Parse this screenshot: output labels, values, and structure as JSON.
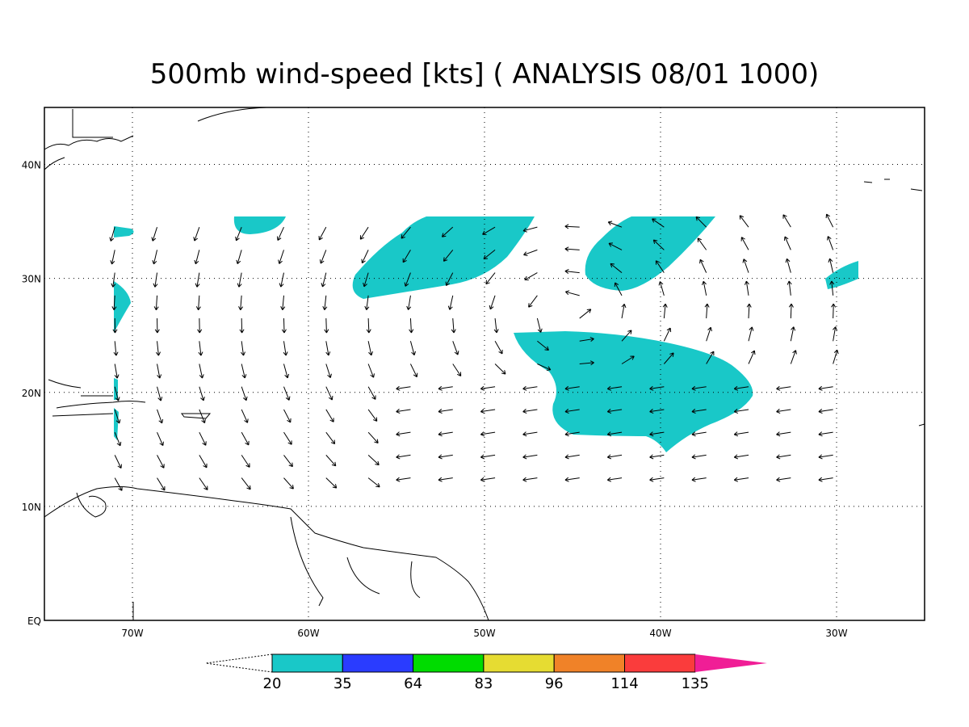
{
  "map": {
    "title": "500mb wind-speed [kts] ( ANALYSIS 08/01 1000)",
    "xlim": [
      -75,
      -25
    ],
    "ylim": [
      0,
      45
    ],
    "xticks": [
      {
        "value": -70,
        "label": "70W"
      },
      {
        "value": -60,
        "label": "60W"
      },
      {
        "value": -50,
        "label": "50W"
      },
      {
        "value": -40,
        "label": "40W"
      },
      {
        "value": -30,
        "label": "30W"
      }
    ],
    "yticks": [
      {
        "value": 40,
        "label": "40N"
      },
      {
        "value": 30,
        "label": "30N"
      },
      {
        "value": 20,
        "label": "20N"
      },
      {
        "value": 10,
        "label": "10N"
      },
      {
        "value": 0,
        "label": "EQ"
      }
    ],
    "grid": true,
    "colorbar": {
      "levels": [
        20,
        35,
        64,
        83,
        96,
        114,
        135
      ],
      "colors": [
        "#19c8c8",
        "#2a3cff",
        "#00dc00",
        "#e6dc32",
        "#f08228",
        "#fa3c3c",
        "#f01e96"
      ]
    }
  }
}
